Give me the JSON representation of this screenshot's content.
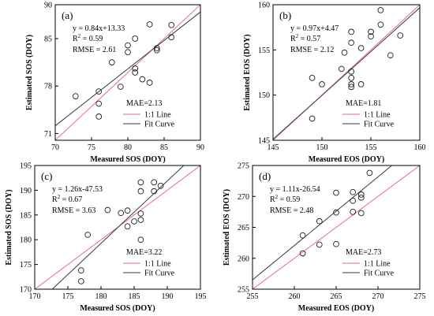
{
  "chart_data": [
    {
      "type": "scatter",
      "panel_label": "(a)",
      "xlabel": "Measured SOS (DOY)",
      "ylabel": "Estimated SOS (DOY)",
      "xlim": [
        70,
        90
      ],
      "ylim": [
        70,
        90
      ],
      "xticks": [
        70,
        75,
        80,
        85,
        90
      ],
      "yticks": [
        71,
        78,
        85,
        90
      ],
      "grid": false,
      "annotations": [
        "y = 0.84x+13.33",
        "R",
        "2",
        " = 0.59",
        "RMSE = 2.61"
      ],
      "mae": "MAE=2.13",
      "legend": [
        "1:1 Line",
        "Fit Curve"
      ],
      "legend_position": "bottom-right",
      "fit": {
        "slope": 0.84,
        "intercept": 13.33
      },
      "points": [
        {
          "x": 72.8,
          "y": 76.5
        },
        {
          "x": 76,
          "y": 73.5
        },
        {
          "x": 76,
          "y": 75.4
        },
        {
          "x": 76,
          "y": 77.2
        },
        {
          "x": 77.8,
          "y": 81.5
        },
        {
          "x": 79,
          "y": 77.9
        },
        {
          "x": 80,
          "y": 83
        },
        {
          "x": 80,
          "y": 84
        },
        {
          "x": 81,
          "y": 80
        },
        {
          "x": 81,
          "y": 80.6
        },
        {
          "x": 81,
          "y": 85
        },
        {
          "x": 82,
          "y": 79
        },
        {
          "x": 83,
          "y": 87.1
        },
        {
          "x": 83,
          "y": 78.5
        },
        {
          "x": 84,
          "y": 83.3
        },
        {
          "x": 84,
          "y": 83.6
        },
        {
          "x": 86,
          "y": 85.2
        },
        {
          "x": 86,
          "y": 87
        }
      ]
    },
    {
      "type": "scatter",
      "panel_label": "(b)",
      "xlabel": "Measured EOS (DOY)",
      "ylabel": "Estimated EOS (DOY)",
      "xlim": [
        145,
        160
      ],
      "ylim": [
        145,
        160
      ],
      "xticks": [
        145,
        150,
        155,
        160
      ],
      "yticks": [
        145,
        150,
        155,
        160
      ],
      "grid": false,
      "annotations": [
        "y = 0.97x+4.47",
        "R",
        "2",
        " = 0.57",
        "RMSE = 2.12"
      ],
      "mae": "MAE=1.81",
      "legend": [
        "1:1 Line",
        "Fit Curve"
      ],
      "legend_position": "bottom-right",
      "fit": {
        "slope": 0.97,
        "intercept": 4.47
      },
      "points": [
        {
          "x": 149,
          "y": 147.4
        },
        {
          "x": 149,
          "y": 151.9
        },
        {
          "x": 150,
          "y": 151.2
        },
        {
          "x": 152,
          "y": 152.9
        },
        {
          "x": 152.3,
          "y": 154.7
        },
        {
          "x": 153,
          "y": 151.2
        },
        {
          "x": 153,
          "y": 150.9
        },
        {
          "x": 153,
          "y": 151.9
        },
        {
          "x": 153,
          "y": 152.6
        },
        {
          "x": 153,
          "y": 155.8
        },
        {
          "x": 153,
          "y": 157
        },
        {
          "x": 154,
          "y": 155.2
        },
        {
          "x": 154,
          "y": 151.2
        },
        {
          "x": 155,
          "y": 156.5
        },
        {
          "x": 155,
          "y": 157
        },
        {
          "x": 156,
          "y": 157.8
        },
        {
          "x": 156,
          "y": 159.4
        },
        {
          "x": 157,
          "y": 154.4
        },
        {
          "x": 158,
          "y": 156.6
        }
      ]
    },
    {
      "type": "scatter",
      "panel_label": "(c)",
      "xlabel": "Measured SOS (DOY)",
      "ylabel": "Estimated SOS (DOY)",
      "xlim": [
        170,
        195
      ],
      "ylim": [
        170,
        195
      ],
      "xticks": [
        170,
        175,
        180,
        185,
        190,
        195
      ],
      "yticks": [
        170,
        175,
        180,
        185,
        190,
        195
      ],
      "grid": false,
      "annotations": [
        "y = 1.26x-47.53",
        "R",
        "2",
        " = 0.67",
        "RMSE = 3.63"
      ],
      "mae": "MAE=3.22",
      "legend": [
        "1:1 Line",
        "Fit Curve"
      ],
      "legend_position": "bottom-right",
      "fit": {
        "slope": 1.26,
        "intercept": -47.53
      },
      "points": [
        {
          "x": 177,
          "y": 171.6
        },
        {
          "x": 177,
          "y": 173.8
        },
        {
          "x": 178,
          "y": 181
        },
        {
          "x": 181,
          "y": 186
        },
        {
          "x": 183,
          "y": 185.4
        },
        {
          "x": 184,
          "y": 182.7
        },
        {
          "x": 184,
          "y": 185.9
        },
        {
          "x": 185,
          "y": 183.7
        },
        {
          "x": 186,
          "y": 180
        },
        {
          "x": 186,
          "y": 184
        },
        {
          "x": 186,
          "y": 185.3
        },
        {
          "x": 186,
          "y": 189.8
        },
        {
          "x": 186,
          "y": 191.6
        },
        {
          "x": 188,
          "y": 189.8
        },
        {
          "x": 188,
          "y": 191.6
        },
        {
          "x": 189,
          "y": 190.9
        }
      ]
    },
    {
      "type": "scatter",
      "panel_label": "(d)",
      "xlabel": "Measured EOS (DOY)",
      "ylabel": "Estimated EOS (DOY)",
      "xlim": [
        255,
        275
      ],
      "ylim": [
        255,
        275
      ],
      "xticks": [
        255,
        260,
        265,
        270,
        275
      ],
      "yticks": [
        255,
        260,
        265,
        270,
        275
      ],
      "grid": false,
      "annotations": [
        "y = 1.11x-26.54",
        "R",
        "2",
        " = 0.59",
        "RMSE = 2.48"
      ],
      "mae": "MAE=2.73",
      "legend": [
        "1:1 Line",
        "Fit Curve"
      ],
      "legend_position": "bottom-right",
      "fit": {
        "slope": 1.11,
        "intercept": -26.54
      },
      "points": [
        {
          "x": 261,
          "y": 260.8
        },
        {
          "x": 261,
          "y": 263.7
        },
        {
          "x": 263,
          "y": 262.2
        },
        {
          "x": 263,
          "y": 266
        },
        {
          "x": 265,
          "y": 262.3
        },
        {
          "x": 265,
          "y": 267.4
        },
        {
          "x": 265,
          "y": 270.6
        },
        {
          "x": 267,
          "y": 267.5
        },
        {
          "x": 267,
          "y": 269.3
        },
        {
          "x": 267,
          "y": 270.7
        },
        {
          "x": 268,
          "y": 267.3
        },
        {
          "x": 268,
          "y": 269.8
        },
        {
          "x": 268,
          "y": 270.3
        },
        {
          "x": 269,
          "y": 273.8
        }
      ]
    }
  ],
  "colors": {
    "one_to_one_line": "#e0707a",
    "fit_curve": "#3a3a3a",
    "axis": "#000000",
    "marker_edge": "#222222"
  }
}
